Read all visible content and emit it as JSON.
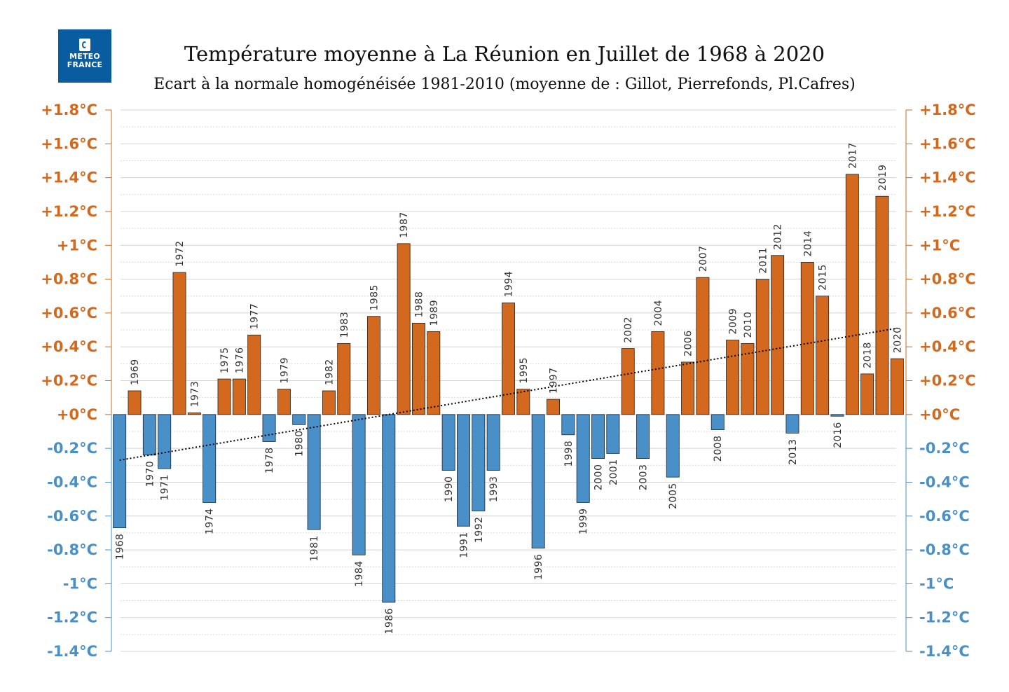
{
  "logo": {
    "line1": "METEO",
    "line2": "FRANCE"
  },
  "chart_data": {
    "type": "bar",
    "title": "Température moyenne à La Réunion en Juillet de 1968 à 2020",
    "subtitle": "Ecart à la normale homogénéisée 1981-2010 (moyenne de : Gillot, Pierrefonds, Pl.Cafres)",
    "xlabel": "",
    "ylabel": "",
    "ylim": [
      -1.4,
      1.8
    ],
    "y_ticks": [
      1.8,
      1.6,
      1.4,
      1.2,
      1.0,
      0.8,
      0.6,
      0.4,
      0.2,
      0.0,
      -0.2,
      -0.4,
      -0.6,
      -0.8,
      -1.0,
      -1.2,
      -1.4
    ],
    "y_tick_labels": [
      "+1.8°C",
      "+1.6°C",
      "+1.4°C",
      "+1.2°C",
      "+1°C",
      "+0.8°C",
      "+0.6°C",
      "+0.4°C",
      "+0.2°C",
      "+0°C",
      "-0.2°C",
      "-0.4°C",
      "-0.6°C",
      "-0.8°C",
      "-1°C",
      "-1.2°C",
      "-1.4°C"
    ],
    "y_axis_both_sides": true,
    "grid": true,
    "colors": {
      "positive": "#d2691e",
      "negative": "#4a90c8",
      "positive_ticks": "#d2691e",
      "negative_ticks": "#4a90c8",
      "trend": "#000000"
    },
    "categories": [
      "1968",
      "1969",
      "1970",
      "1971",
      "1972",
      "1973",
      "1974",
      "1975",
      "1976",
      "1977",
      "1978",
      "1979",
      "1980",
      "1981",
      "1982",
      "1983",
      "1984",
      "1985",
      "1986",
      "1987",
      "1988",
      "1989",
      "1990",
      "1991",
      "1992",
      "1993",
      "1994",
      "1995",
      "1996",
      "1997",
      "1998",
      "1999",
      "2000",
      "2001",
      "2002",
      "2003",
      "2004",
      "2005",
      "2006",
      "2007",
      "2008",
      "2009",
      "2010",
      "2011",
      "2012",
      "2013",
      "2014",
      "2015",
      "2016",
      "2017",
      "2018",
      "2019",
      "2020"
    ],
    "values": [
      -0.67,
      0.14,
      -0.24,
      -0.32,
      0.84,
      0.01,
      -0.52,
      0.21,
      0.21,
      0.47,
      -0.16,
      0.15,
      -0.06,
      -0.68,
      0.14,
      0.42,
      -0.83,
      0.58,
      -1.11,
      1.01,
      0.54,
      0.49,
      -0.33,
      -0.66,
      -0.57,
      -0.33,
      0.66,
      0.15,
      -0.79,
      0.09,
      -0.12,
      -0.52,
      -0.26,
      -0.23,
      0.39,
      -0.26,
      0.49,
      -0.37,
      0.31,
      0.81,
      -0.09,
      0.44,
      0.42,
      0.8,
      0.94,
      -0.11,
      0.9,
      0.7,
      -0.01,
      1.42,
      0.24,
      1.29,
      0.33
    ],
    "trend": {
      "style": "dotted",
      "start": {
        "x": "1968",
        "y": -0.27
      },
      "end": {
        "x": "2020",
        "y": 0.51
      }
    }
  }
}
